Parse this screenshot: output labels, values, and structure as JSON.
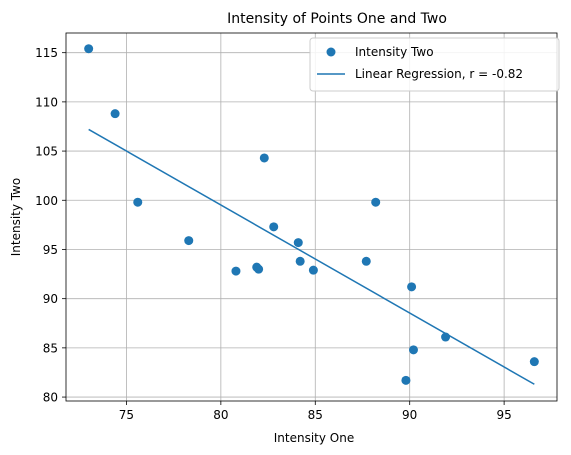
{
  "chart_data": {
    "type": "scatter",
    "title": "Intensity of Points One and Two",
    "xlabel": "Intensity One",
    "ylabel": "Intensity Two",
    "xlim": [
      71.8,
      97.8
    ],
    "ylim": [
      79.6,
      117.0
    ],
    "xticks": [
      75,
      80,
      85,
      90,
      95
    ],
    "yticks": [
      80,
      85,
      90,
      95,
      100,
      105,
      110,
      115
    ],
    "grid": true,
    "legend_position": "upper-right",
    "series": [
      {
        "name": "Intensity Two",
        "kind": "scatter",
        "color": "#1f77b4",
        "points": [
          [
            73.0,
            115.4
          ],
          [
            74.4,
            108.8
          ],
          [
            75.6,
            99.8
          ],
          [
            78.3,
            95.9
          ],
          [
            80.8,
            92.8
          ],
          [
            81.9,
            93.2
          ],
          [
            82.0,
            93.0
          ],
          [
            82.3,
            104.3
          ],
          [
            82.8,
            97.3
          ],
          [
            84.1,
            95.7
          ],
          [
            84.2,
            93.8
          ],
          [
            84.9,
            92.9
          ],
          [
            87.7,
            93.8
          ],
          [
            88.2,
            99.8
          ],
          [
            89.8,
            81.7
          ],
          [
            90.1,
            91.2
          ],
          [
            90.2,
            84.8
          ],
          [
            91.9,
            86.1
          ],
          [
            96.6,
            83.6
          ]
        ]
      },
      {
        "name": "Linear Regression, r = -0.82",
        "kind": "line",
        "color": "#1f77b4",
        "x": [
          73.0,
          96.6
        ],
        "y": [
          107.2,
          81.3
        ]
      }
    ]
  }
}
